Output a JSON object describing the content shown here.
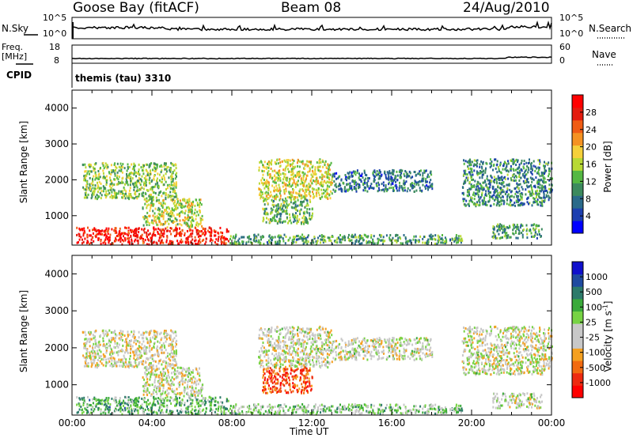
{
  "header": {
    "title": "Goose Bay (fitACF)",
    "beam": "Beam 08",
    "date": "24/Aug/2010"
  },
  "top_panels": {
    "nsky_label": "N.Sky",
    "nsky_ticks": [
      "10^5",
      "10^0"
    ],
    "nsearch_ticks": [
      "10^5",
      "10^0"
    ],
    "nsearch_label": "N.Search",
    "freq_label": "Freq.",
    "freq_unit": "[MHz]",
    "freq_ticks": [
      "18",
      "8"
    ],
    "nave_ticks": [
      "60",
      "0"
    ],
    "nave_label": "Nave",
    "cpid_label": "CPID",
    "cpid_value": "themis (tau) 3310"
  },
  "chart_data": [
    {
      "type": "heatmap",
      "name": "power-panel",
      "ylabel": "Slant Range [km]",
      "ylim": [
        180,
        4500
      ],
      "xlim": [
        0,
        24
      ],
      "yticks": [
        "4000",
        "3000",
        "2000",
        "1000"
      ],
      "colorbar": {
        "label": "Power [dB]",
        "ticks": [
          "28",
          "24",
          "20",
          "16",
          "12",
          "8",
          "4"
        ],
        "colors": [
          "#0000ff",
          "#1c3fb0",
          "#2a6a8a",
          "#3c8a5e",
          "#55b843",
          "#b8d934",
          "#f5d03a",
          "#f59222",
          "#f05c14",
          "#e41b0e",
          "#ff0000"
        ]
      },
      "echo_bands": [
        {
          "t_start": 0.2,
          "t_end": 7.8,
          "r_low": 230,
          "r_high": 700,
          "level": 0.9
        },
        {
          "t_start": 7.8,
          "t_end": 19.5,
          "r_low": 230,
          "r_high": 500,
          "level": 0.35
        },
        {
          "t_start": 0.5,
          "t_end": 5.2,
          "r_low": 1500,
          "r_high": 2500,
          "level": 0.45
        },
        {
          "t_start": 9.3,
          "t_end": 13.0,
          "r_low": 1500,
          "r_high": 2600,
          "level": 0.55
        },
        {
          "t_start": 13.0,
          "t_end": 18.0,
          "r_low": 1700,
          "r_high": 2300,
          "level": 0.25
        },
        {
          "t_start": 19.5,
          "t_end": 24.0,
          "r_low": 1300,
          "r_high": 2600,
          "level": 0.3
        },
        {
          "t_start": 3.5,
          "t_end": 6.5,
          "r_low": 700,
          "r_high": 1500,
          "level": 0.5
        },
        {
          "t_start": 9.5,
          "t_end": 12.0,
          "r_low": 800,
          "r_high": 1500,
          "level": 0.4
        },
        {
          "t_start": 21.0,
          "t_end": 23.5,
          "r_low": 400,
          "r_high": 800,
          "level": 0.35
        }
      ]
    },
    {
      "type": "heatmap",
      "name": "velocity-panel",
      "ylabel": "Slant Range [km]",
      "xlabel": "Time UT",
      "ylim": [
        180,
        4500
      ],
      "xlim": [
        0,
        24
      ],
      "yticks": [
        "4000",
        "3000",
        "2000",
        "1000"
      ],
      "xticks": [
        "00:00",
        "04:00",
        "08:00",
        "12:00",
        "16:00",
        "20:00",
        "00:00"
      ],
      "colorbar": {
        "label": "Velocity [m s",
        "label_sup": "-1",
        "label_end": "]",
        "ticks": [
          "1000",
          "500",
          "100",
          "25",
          "-25",
          "-100",
          "-500",
          "-1000"
        ],
        "colors": [
          "#ff0000",
          "#ee2a10",
          "#f26a10",
          "#f5a020",
          "#c8c8c8",
          "#c8c8c8",
          "#77d344",
          "#3aaa3a",
          "#2c7a6a",
          "#1f4aa0",
          "#1010cc"
        ]
      },
      "echo_bands": [
        {
          "t_start": 0.2,
          "t_end": 7.8,
          "r_low": 230,
          "r_high": 700,
          "level": 0.65
        },
        {
          "t_start": 7.8,
          "t_end": 19.5,
          "r_low": 230,
          "r_high": 500,
          "level": 0.58
        },
        {
          "t_start": 0.5,
          "t_end": 5.2,
          "r_low": 1500,
          "r_high": 2500,
          "level": 0.45
        },
        {
          "t_start": 9.3,
          "t_end": 13.0,
          "r_low": 1500,
          "r_high": 2600,
          "level": 0.48
        },
        {
          "t_start": 13.0,
          "t_end": 18.0,
          "r_low": 1700,
          "r_high": 2300,
          "level": 0.47
        },
        {
          "t_start": 19.5,
          "t_end": 24.0,
          "r_low": 1300,
          "r_high": 2600,
          "level": 0.47
        },
        {
          "t_start": 3.5,
          "t_end": 6.5,
          "r_low": 700,
          "r_high": 1500,
          "level": 0.47
        },
        {
          "t_start": 9.5,
          "t_end": 12.0,
          "r_low": 800,
          "r_high": 1500,
          "level": 0.18
        },
        {
          "t_start": 21.0,
          "t_end": 23.5,
          "r_low": 400,
          "r_high": 800,
          "level": 0.5
        }
      ]
    }
  ]
}
